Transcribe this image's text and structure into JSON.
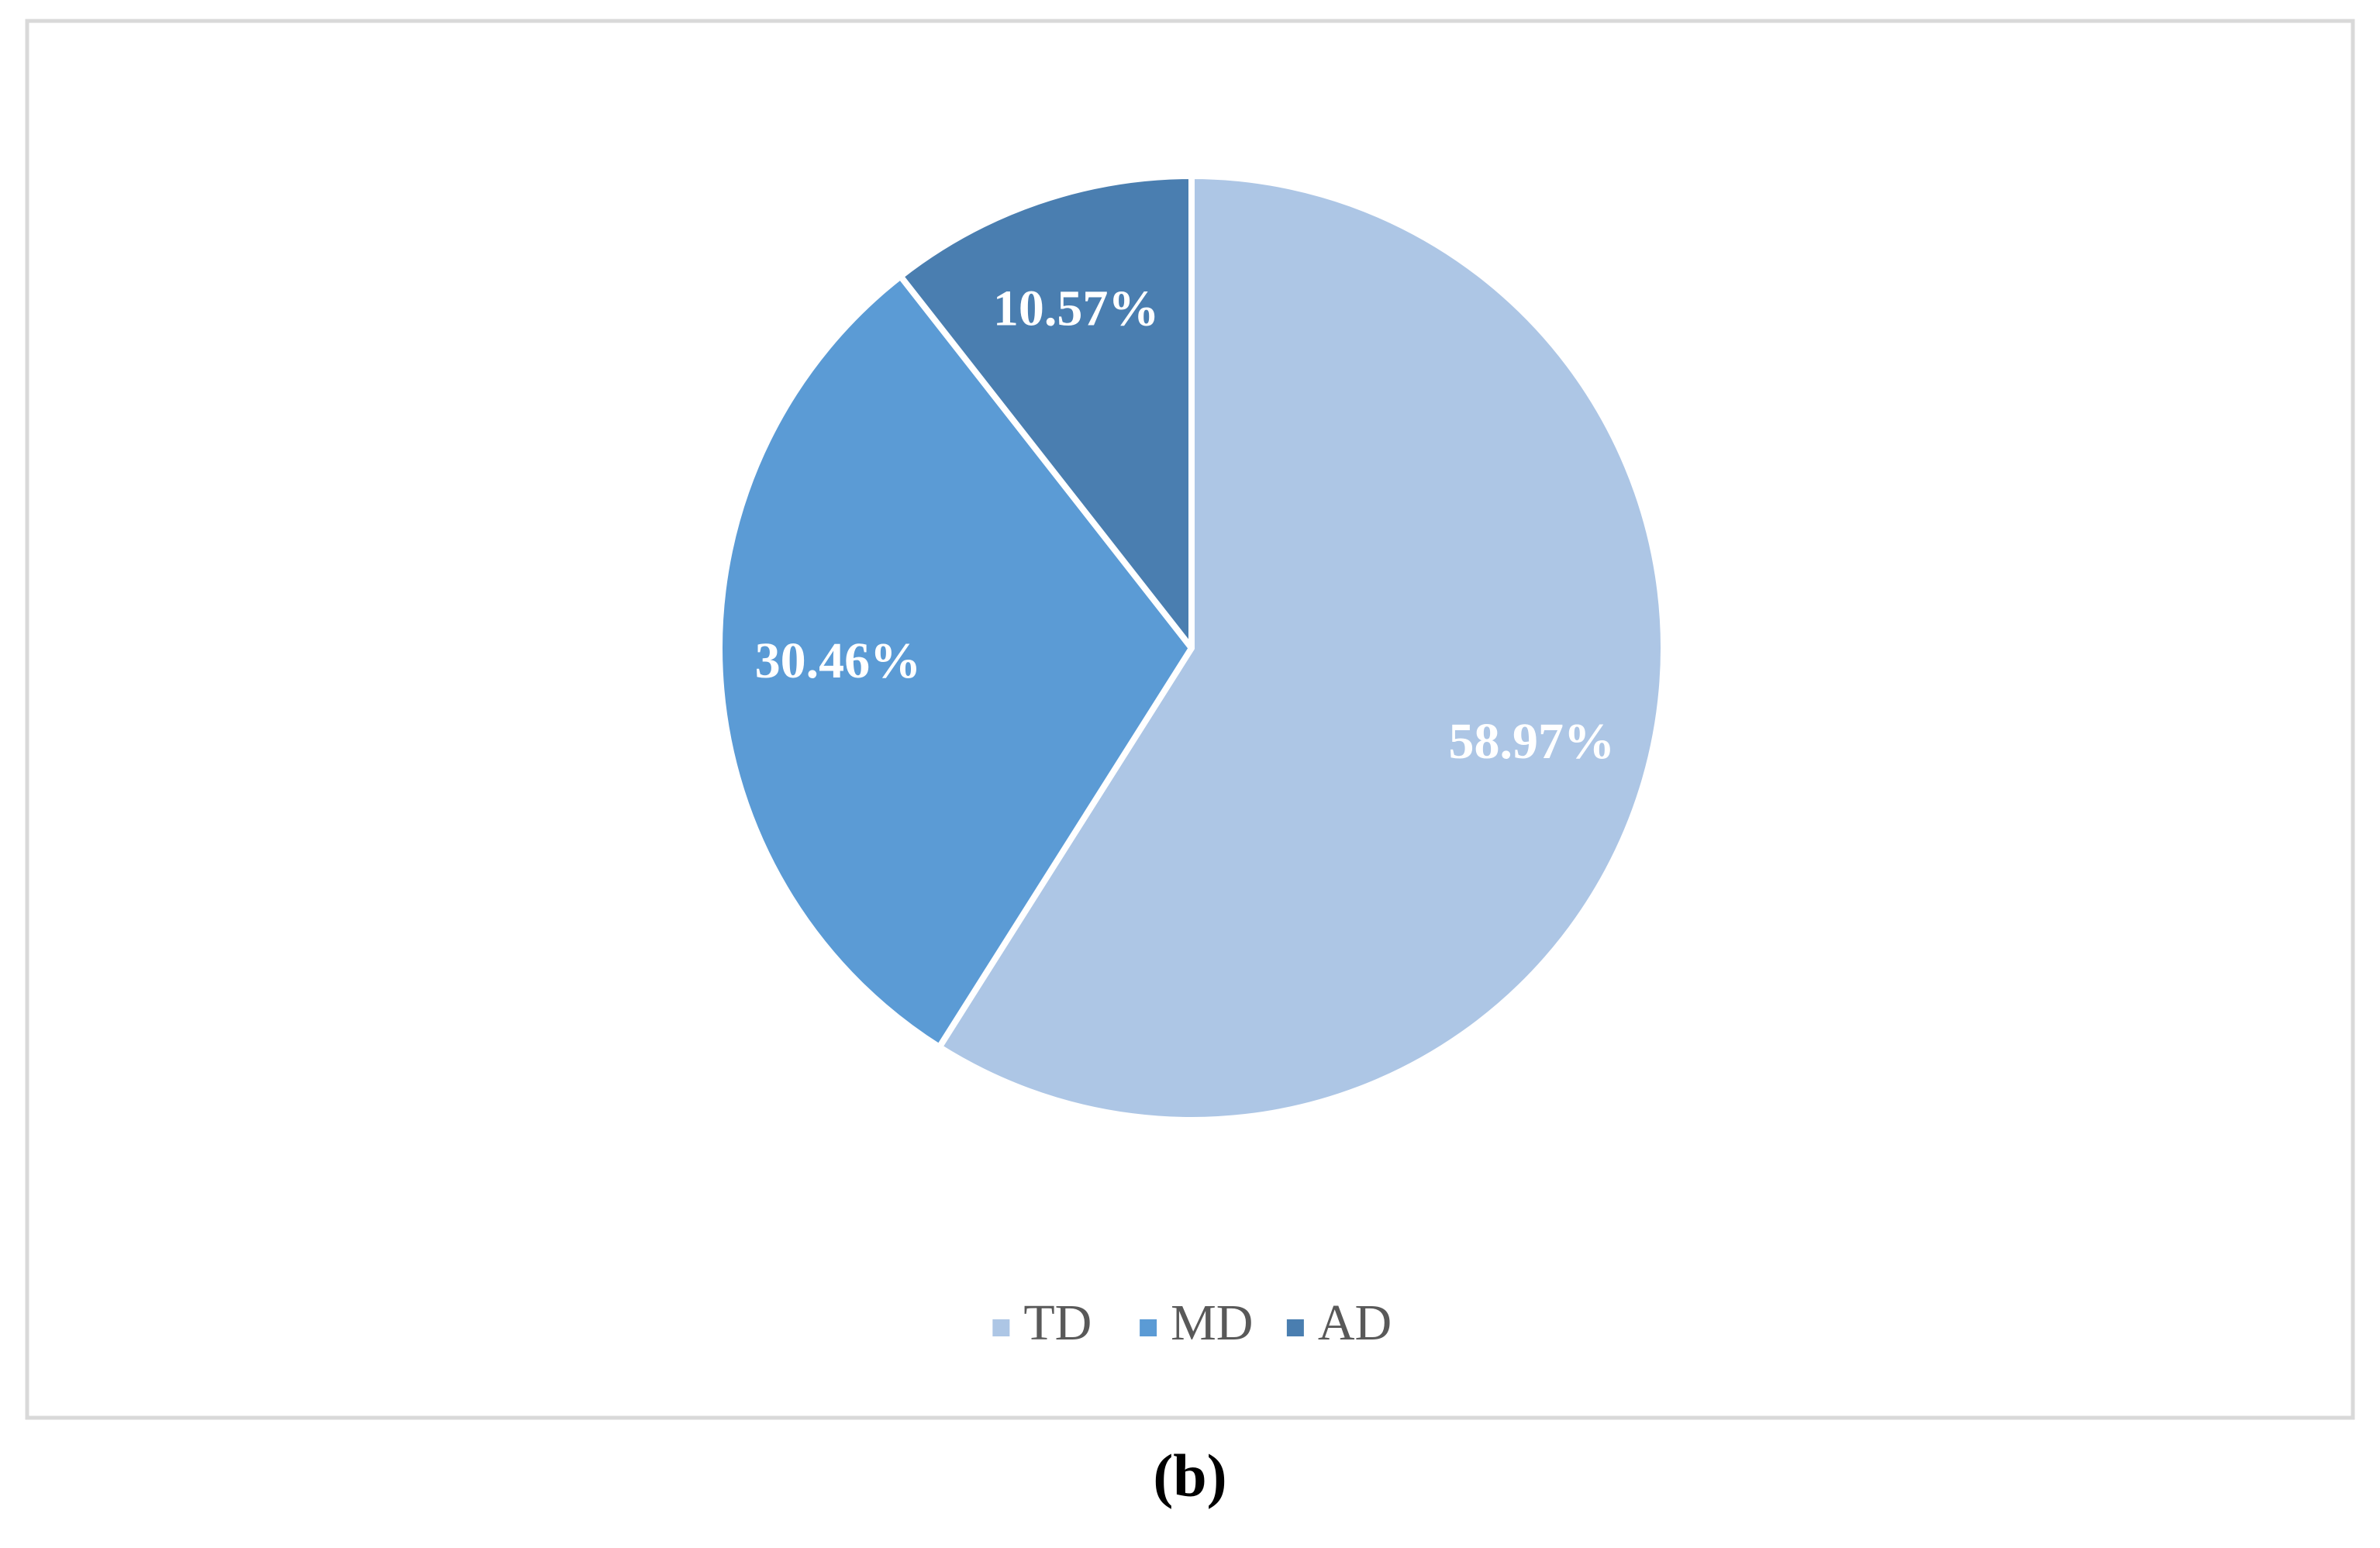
{
  "chart_data": {
    "type": "pie",
    "categories": [
      "TD",
      "MD",
      "AD"
    ],
    "values": [
      58.97,
      30.46,
      10.57
    ],
    "value_labels": [
      "58.97%",
      "30.46%",
      "10.57%"
    ],
    "colors": [
      "#adc6e5",
      "#5b9bd5",
      "#4a7eb0"
    ],
    "legend": "bottom"
  },
  "caption": "(b)"
}
